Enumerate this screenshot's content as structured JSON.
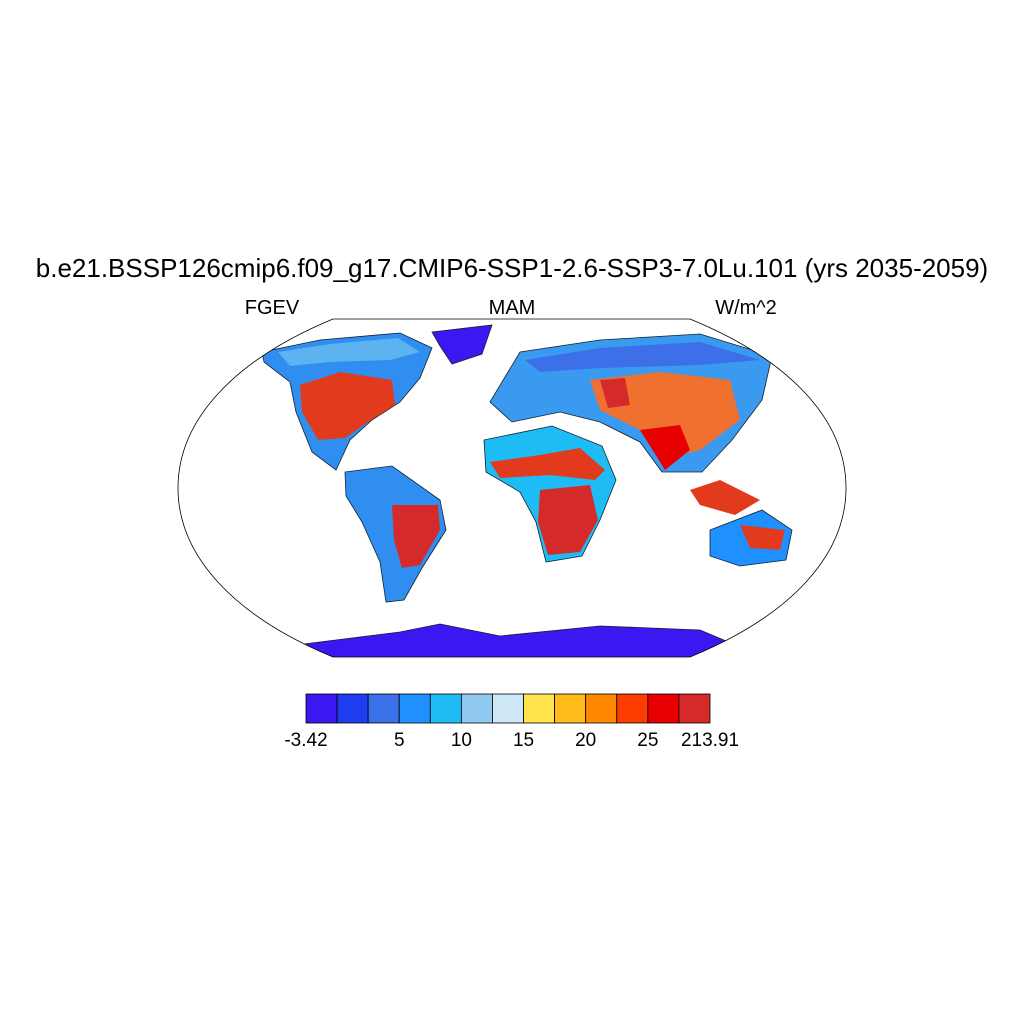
{
  "title": "b.e21.BSSP126cmip6.f09_g17.CMIP6-SSP1-2.6-SSP3-7.0Lu.101 (yrs 2035-2059)",
  "left_label": "FGEV",
  "center_label": "MAM",
  "right_label": "W/m^2",
  "colorbar": {
    "colors": [
      "#3b18f2",
      "#1f3cf0",
      "#3a70e8",
      "#1e90ff",
      "#1ebcf5",
      "#90c8f0",
      "#cde7f7",
      "#ffe44e",
      "#ffbb1a",
      "#ff8800",
      "#ff3c00",
      "#e80000",
      "#d42a2a"
    ],
    "boundary_labels": [
      -3.42,
      null,
      null,
      5,
      null,
      10,
      null,
      15,
      null,
      20,
      null,
      25,
      null,
      213.91
    ]
  }
}
